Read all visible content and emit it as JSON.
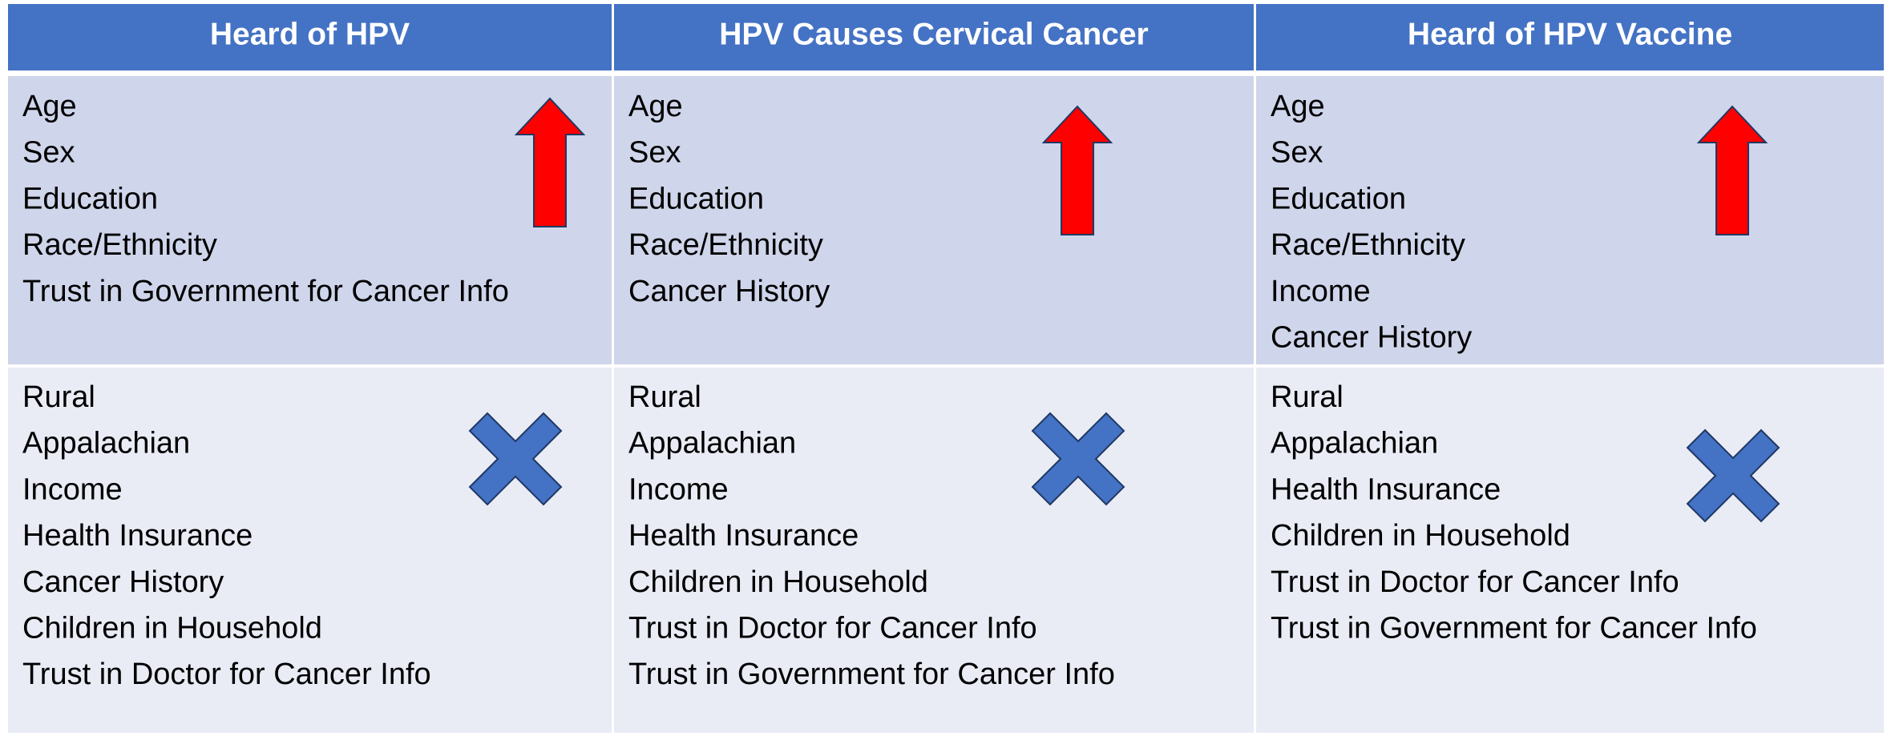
{
  "table": {
    "columns": [
      "Heard of HPV",
      "HPV Causes Cervical Cancer",
      "Heard of HPV Vaccine"
    ],
    "rows": [
      [
        [
          "Age",
          "Sex",
          "Education",
          "Race/Ethnicity",
          "Trust in Government for Cancer Info"
        ],
        [
          "Age",
          "Sex",
          "Education",
          "Race/Ethnicity",
          "Cancer History"
        ],
        [
          "Age",
          "Sex",
          "Education",
          "Race/Ethnicity",
          "Income",
          "Cancer History"
        ]
      ],
      [
        [
          "Rural",
          "Appalachian",
          "Income",
          "Health Insurance",
          "Cancer History",
          "Children in Household",
          "Trust in Doctor for Cancer Info"
        ],
        [
          "Rural",
          "Appalachian",
          "Income",
          "Health Insurance",
          "Children in Household",
          "Trust in Doctor for Cancer Info",
          "Trust in Government for Cancer Info"
        ],
        [
          "Rural",
          "Appalachian",
          "Health Insurance",
          "Children in Household",
          "Trust in Doctor for Cancer Info",
          "Trust in Government for Cancer Info"
        ]
      ]
    ]
  }
}
